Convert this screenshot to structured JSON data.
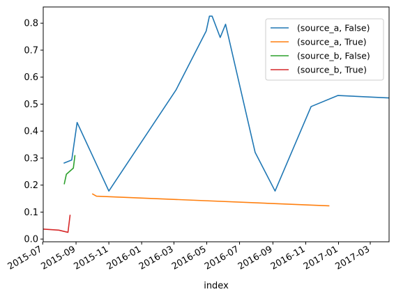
{
  "chart_data": {
    "type": "line",
    "xlabel": "index",
    "ylabel": "",
    "x_type": "date",
    "xlim": [
      "2015-07-02",
      "2017-04-05"
    ],
    "ylim": [
      -0.01,
      0.86
    ],
    "yticks": [
      0.0,
      0.1,
      0.2,
      0.3,
      0.4,
      0.5,
      0.6,
      0.7,
      0.8
    ],
    "ytick_labels": [
      "0.0",
      "0.1",
      "0.2",
      "0.3",
      "0.4",
      "0.5",
      "0.6",
      "0.7",
      "0.8"
    ],
    "xticks": [
      "2015-07-01",
      "2015-09-01",
      "2015-11-01",
      "2016-01-01",
      "2016-03-01",
      "2016-05-01",
      "2016-07-01",
      "2016-09-01",
      "2016-11-01",
      "2017-01-01",
      "2017-03-01"
    ],
    "xtick_labels": [
      "2015-07",
      "2015-09",
      "2015-11",
      "2016-01",
      "2016-03",
      "2016-05",
      "2016-07",
      "2016-09",
      "2016-11",
      "2017-01",
      "2017-03"
    ],
    "grid": false,
    "legend_position": "top-right",
    "series": [
      {
        "name": "(source_a, False)",
        "color": "#1f77b4",
        "points": [
          [
            "2015-08-09",
            0.281
          ],
          [
            "2015-08-24",
            0.293
          ],
          [
            "2015-09-03",
            0.432
          ],
          [
            "2015-11-01",
            0.178
          ],
          [
            "2016-03-05",
            0.553
          ],
          [
            "2016-04-30",
            0.771
          ],
          [
            "2016-05-06",
            0.826
          ],
          [
            "2016-05-11",
            0.826
          ],
          [
            "2016-05-26",
            0.747
          ],
          [
            "2016-06-05",
            0.796
          ],
          [
            "2016-07-30",
            0.321
          ],
          [
            "2016-09-05",
            0.178
          ],
          [
            "2016-11-11",
            0.491
          ],
          [
            "2016-12-31",
            0.532
          ],
          [
            "2017-04-05",
            0.523
          ]
        ]
      },
      {
        "name": "(source_a, True)",
        "color": "#ff7f0e",
        "points": [
          [
            "2015-10-01",
            0.168
          ],
          [
            "2015-10-09",
            0.159
          ],
          [
            "2016-12-15",
            0.123
          ]
        ]
      },
      {
        "name": "(source_b, False)",
        "color": "#2ca02c",
        "points": [
          [
            "2015-08-10",
            0.203
          ],
          [
            "2015-08-14",
            0.24
          ],
          [
            "2015-08-27",
            0.263
          ],
          [
            "2015-08-30",
            0.311
          ]
        ]
      },
      {
        "name": "(source_b, True)",
        "color": "#d62728",
        "points": [
          [
            "2015-07-01",
            0.037
          ],
          [
            "2015-07-31",
            0.033
          ],
          [
            "2015-08-17",
            0.025
          ],
          [
            "2015-08-21",
            0.09
          ]
        ]
      }
    ]
  }
}
